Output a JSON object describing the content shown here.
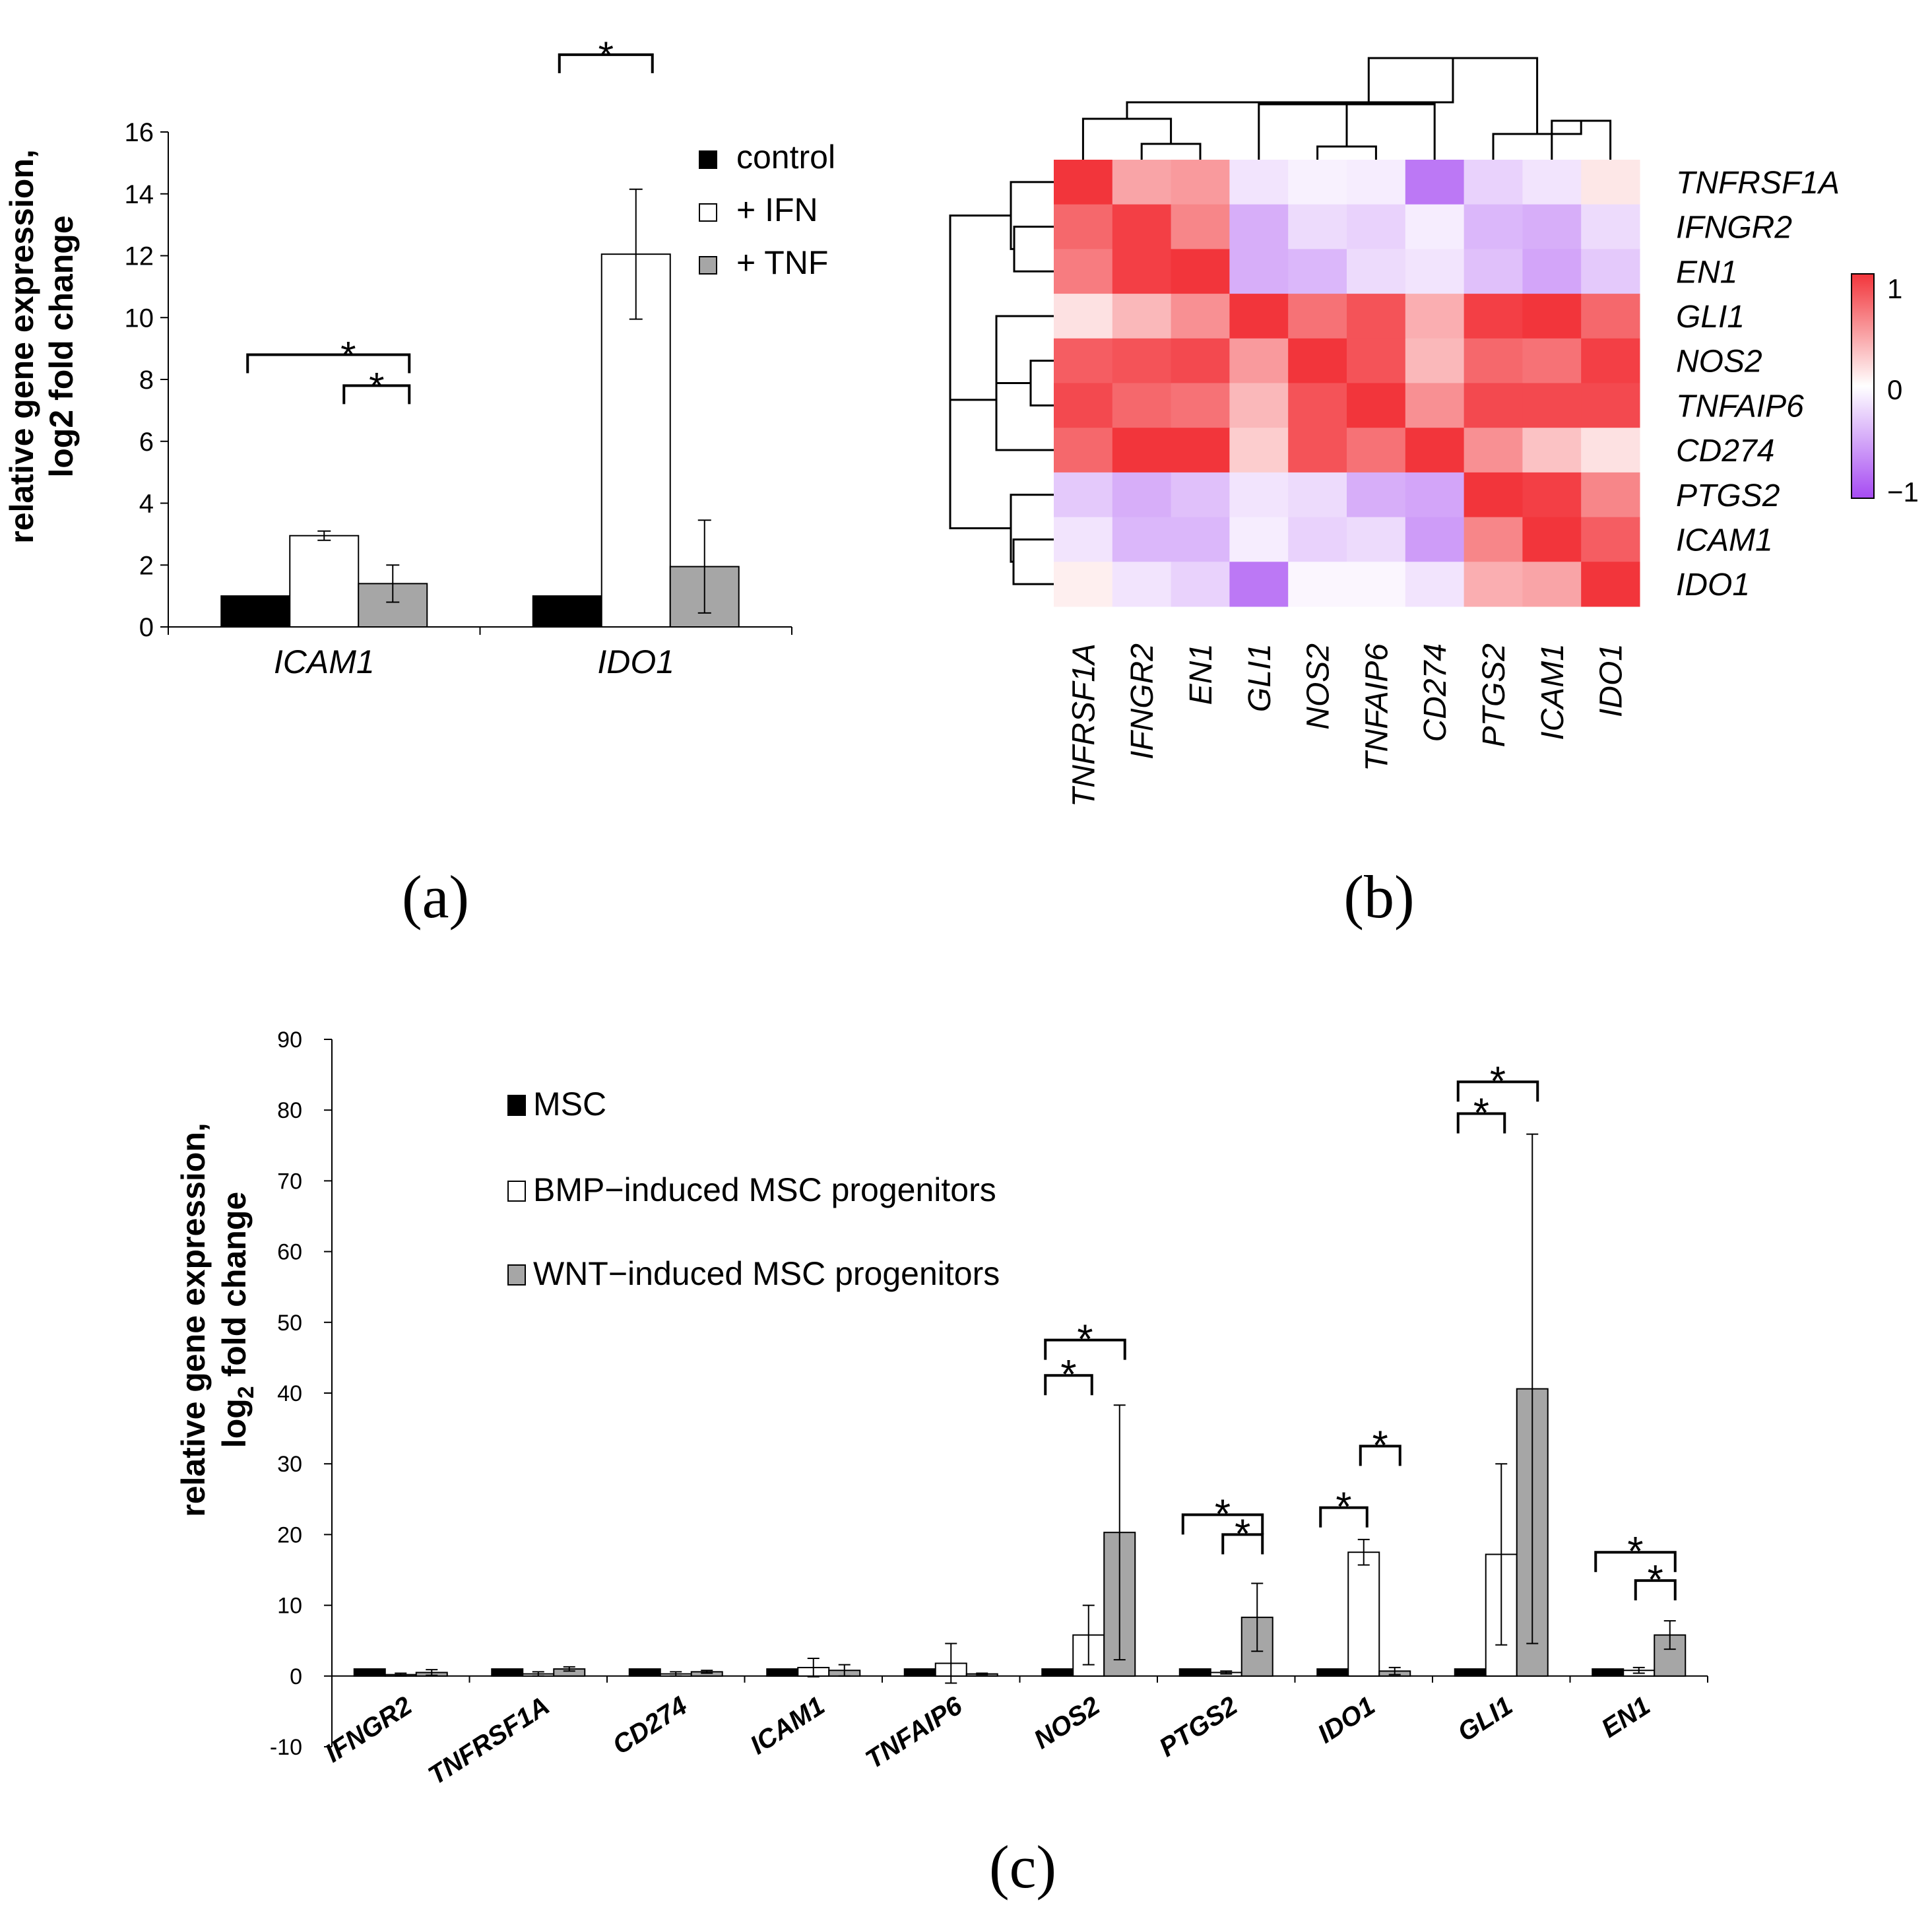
{
  "colors": {
    "control": "#000000",
    "ifn": "#ffffff",
    "tnf": "#a6a6a6",
    "msc": "#000000",
    "bmp": "#ffffff",
    "wnt": "#a6a6a6",
    "heat_high": "#f2353b",
    "heat_mid": "#ffffff",
    "heat_low": "#a64bf2"
  },
  "panels": {
    "a": {
      "label": "(a)"
    },
    "b": {
      "label": "(b)"
    },
    "c": {
      "label": "(c)"
    }
  },
  "chart_data": [
    {
      "id": "a",
      "type": "bar",
      "ylabel_line1": "relative gene expression,",
      "ylabel_line2": "log2 fold change",
      "ylim": [
        0,
        16
      ],
      "yticks": [
        "0",
        "2",
        "4",
        "6",
        "8",
        "10",
        "12",
        "14",
        "16"
      ],
      "categories": [
        "ICAM1",
        "IDO1"
      ],
      "series": [
        {
          "name": "control",
          "values": [
            1.0,
            1.0
          ],
          "errors": [
            0,
            0
          ]
        },
        {
          "name": "+ IFN",
          "values": [
            2.95,
            12.05
          ],
          "errors": [
            0.15,
            2.1
          ]
        },
        {
          "name": "+ TNF",
          "values": [
            1.4,
            1.95
          ],
          "errors": [
            0.6,
            1.5
          ]
        }
      ],
      "significance": [
        {
          "category": 0,
          "from": 0,
          "to": 2,
          "level": 8.8,
          "label": "*"
        },
        {
          "category": 0,
          "from": 1,
          "to": 2,
          "level": 7.8,
          "label": "*"
        },
        {
          "category": 1,
          "from": 0,
          "to": 1,
          "level": 18.5,
          "label": "*"
        }
      ],
      "legend_position": "top-right"
    },
    {
      "id": "b",
      "type": "heatmap",
      "rows": [
        "TNFRSF1A",
        "IFNGR2",
        "EN1",
        "GLI1",
        "NOS2",
        "TNFAIP6",
        "CD274",
        "PTGS2",
        "ICAM1",
        "IDO1"
      ],
      "cols": [
        "TNFRSF1A",
        "IFNGR2",
        "EN1",
        "GLI1",
        "NOS2",
        "TNFAIP6",
        "CD274",
        "PTGS2",
        "ICAM1",
        "IDO1"
      ],
      "values": [
        [
          1.0,
          0.45,
          0.5,
          -0.15,
          -0.08,
          -0.1,
          -0.75,
          -0.25,
          -0.15,
          0.12
        ],
        [
          0.75,
          0.95,
          0.6,
          -0.45,
          -0.2,
          -0.25,
          -0.1,
          -0.4,
          -0.45,
          -0.2
        ],
        [
          0.65,
          0.95,
          1.0,
          -0.45,
          -0.4,
          -0.2,
          -0.15,
          -0.35,
          -0.5,
          -0.3
        ],
        [
          0.15,
          0.35,
          0.55,
          1.0,
          0.7,
          0.85,
          0.4,
          0.95,
          1.0,
          0.75
        ],
        [
          0.8,
          0.85,
          0.9,
          0.5,
          1.0,
          0.85,
          0.35,
          0.75,
          0.7,
          0.95
        ],
        [
          0.9,
          0.75,
          0.7,
          0.35,
          0.85,
          1.0,
          0.55,
          0.9,
          0.9,
          0.9
        ],
        [
          0.75,
          1.0,
          1.0,
          0.25,
          0.85,
          0.7,
          1.0,
          0.55,
          0.3,
          0.15
        ],
        [
          -0.3,
          -0.45,
          -0.35,
          -0.15,
          -0.2,
          -0.45,
          -0.5,
          1.0,
          0.95,
          0.6
        ],
        [
          -0.15,
          -0.4,
          -0.4,
          -0.1,
          -0.25,
          -0.2,
          -0.55,
          0.6,
          1.0,
          0.8
        ],
        [
          0.08,
          -0.15,
          -0.25,
          -0.75,
          -0.05,
          -0.05,
          -0.15,
          0.4,
          0.45,
          1.0
        ]
      ],
      "colorbar": {
        "min": -1,
        "max": 1,
        "ticks": [
          "1",
          "0",
          "−1"
        ]
      }
    },
    {
      "id": "c",
      "type": "bar",
      "ylabel_line1": "relative gene expression,",
      "ylabel_line2": "log",
      "ylabel_sub": "2",
      "ylabel_line2_rest": " fold change",
      "ylim": [
        -10,
        90
      ],
      "yticks": [
        "-10",
        "0",
        "10",
        "20",
        "30",
        "40",
        "50",
        "60",
        "70",
        "80",
        "90"
      ],
      "categories": [
        "IFNGR2",
        "TNFRSF1A",
        "CD274",
        "ICAM1",
        "TNFAIP6",
        "NOS2",
        "PTGS2",
        "IDO1",
        "GLI1",
        "EN1"
      ],
      "series": [
        {
          "name": "MSC",
          "values": [
            1,
            1,
            1,
            1,
            1,
            1,
            1,
            1,
            1,
            1
          ],
          "errors": [
            0,
            0,
            0,
            0,
            0,
            0,
            0,
            0,
            0,
            0
          ]
        },
        {
          "name": "BMP−induced MSC progenitors",
          "values": [
            0.2,
            0.3,
            0.3,
            1.2,
            1.8,
            5.8,
            0.5,
            17.5,
            17.2,
            0.8
          ],
          "errors": [
            0.2,
            0.3,
            0.3,
            1.3,
            2.8,
            4.2,
            0.2,
            1.8,
            12.8,
            0.4
          ]
        },
        {
          "name": "WNT−induced MSC progenitors",
          "values": [
            0.5,
            1.0,
            0.6,
            0.8,
            0.3,
            20.3,
            8.3,
            0.7,
            40.6,
            5.8
          ],
          "errors": [
            0.4,
            0.3,
            0.2,
            0.8,
            0.1,
            18.0,
            4.8,
            0.5,
            36.0,
            2.0
          ]
        }
      ],
      "significance": [
        {
          "category": 5,
          "from": 0,
          "to": 2,
          "level": 47.5,
          "label": "*"
        },
        {
          "category": 5,
          "from": 0,
          "to": 1,
          "level": 42.5,
          "label": "*"
        },
        {
          "category": 6,
          "from": 0,
          "to": 2,
          "level": 22.8,
          "label": "*"
        },
        {
          "category": 6,
          "from": 1,
          "to": 2,
          "level": 20.0,
          "label": "*"
        },
        {
          "category": 7,
          "from": 0,
          "to": 1,
          "level": 23.8,
          "label": "*"
        },
        {
          "category": 7,
          "from": 1,
          "to": 2,
          "level": 32.5,
          "label": "*"
        },
        {
          "category": 8,
          "from": 0,
          "to": 2,
          "level": 84.0,
          "label": "*"
        },
        {
          "category": 8,
          "from": 0,
          "to": 1,
          "level": 79.5,
          "label": "*"
        },
        {
          "category": 9,
          "from": 0,
          "to": 2,
          "level": 17.5,
          "label": "*"
        },
        {
          "category": 9,
          "from": 1,
          "to": 2,
          "level": 13.5,
          "label": "*"
        }
      ],
      "legend_position": "top-left"
    }
  ]
}
